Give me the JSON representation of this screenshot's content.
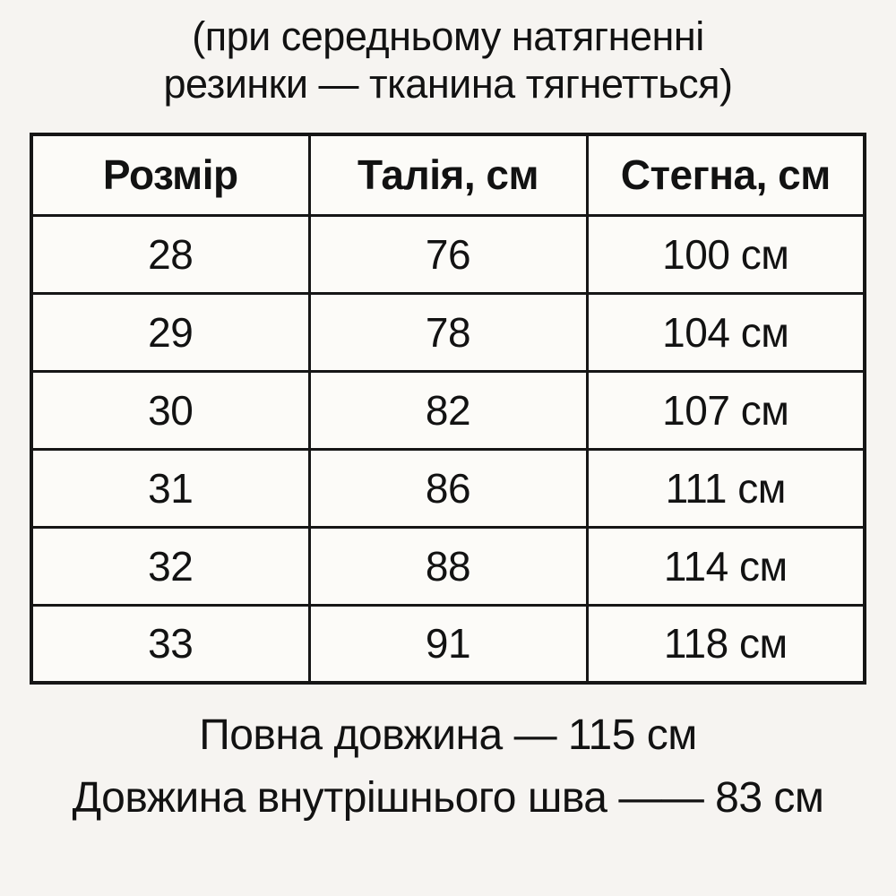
{
  "note": {
    "line1": "(при середньому натягненні",
    "line2": "резинки — тканина тягнетться)"
  },
  "table": {
    "headers": [
      "Розмір",
      "Талія, см",
      "Стегна, см"
    ],
    "rows": [
      {
        "size": "28",
        "waist": "76",
        "hips": "100 см"
      },
      {
        "size": "29",
        "waist": "78",
        "hips": "104 см"
      },
      {
        "size": "30",
        "waist": "82",
        "hips": "107 см"
      },
      {
        "size": "31",
        "waist": "86",
        "hips": "111 см"
      },
      {
        "size": "32",
        "waist": "88",
        "hips": "114 см"
      },
      {
        "size": "33",
        "waist": "91",
        "hips": "118 см"
      }
    ]
  },
  "footer": {
    "line1": "Повна довжина — 115 см",
    "line2": "Довжина внутрішнього шва —— 83 см"
  },
  "colors": {
    "background": "#f6f4f1",
    "cell_background": "#fcfbf8",
    "border": "#161616",
    "text": "#121212"
  }
}
